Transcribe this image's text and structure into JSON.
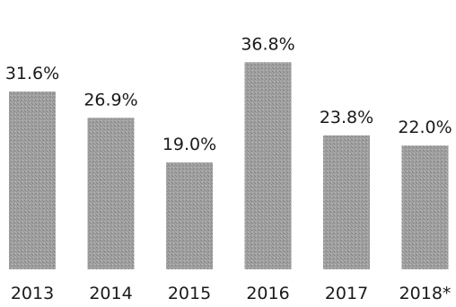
{
  "chart_data": {
    "type": "bar",
    "title": "",
    "xlabel": "",
    "ylabel": "",
    "categories": [
      "2013",
      "2014",
      "2015",
      "2016",
      "2017",
      "2018*"
    ],
    "values": [
      31.6,
      26.9,
      19.0,
      36.8,
      23.8,
      22.0
    ],
    "value_labels": [
      "31.6%",
      "26.9%",
      "19.0%",
      "36.8%",
      "23.8%",
      "22.0%"
    ],
    "ylim": [
      0,
      40
    ],
    "grid": false,
    "legend": "none",
    "bar_color": "#9a9a9a",
    "text_color": "#1a1a1a"
  }
}
